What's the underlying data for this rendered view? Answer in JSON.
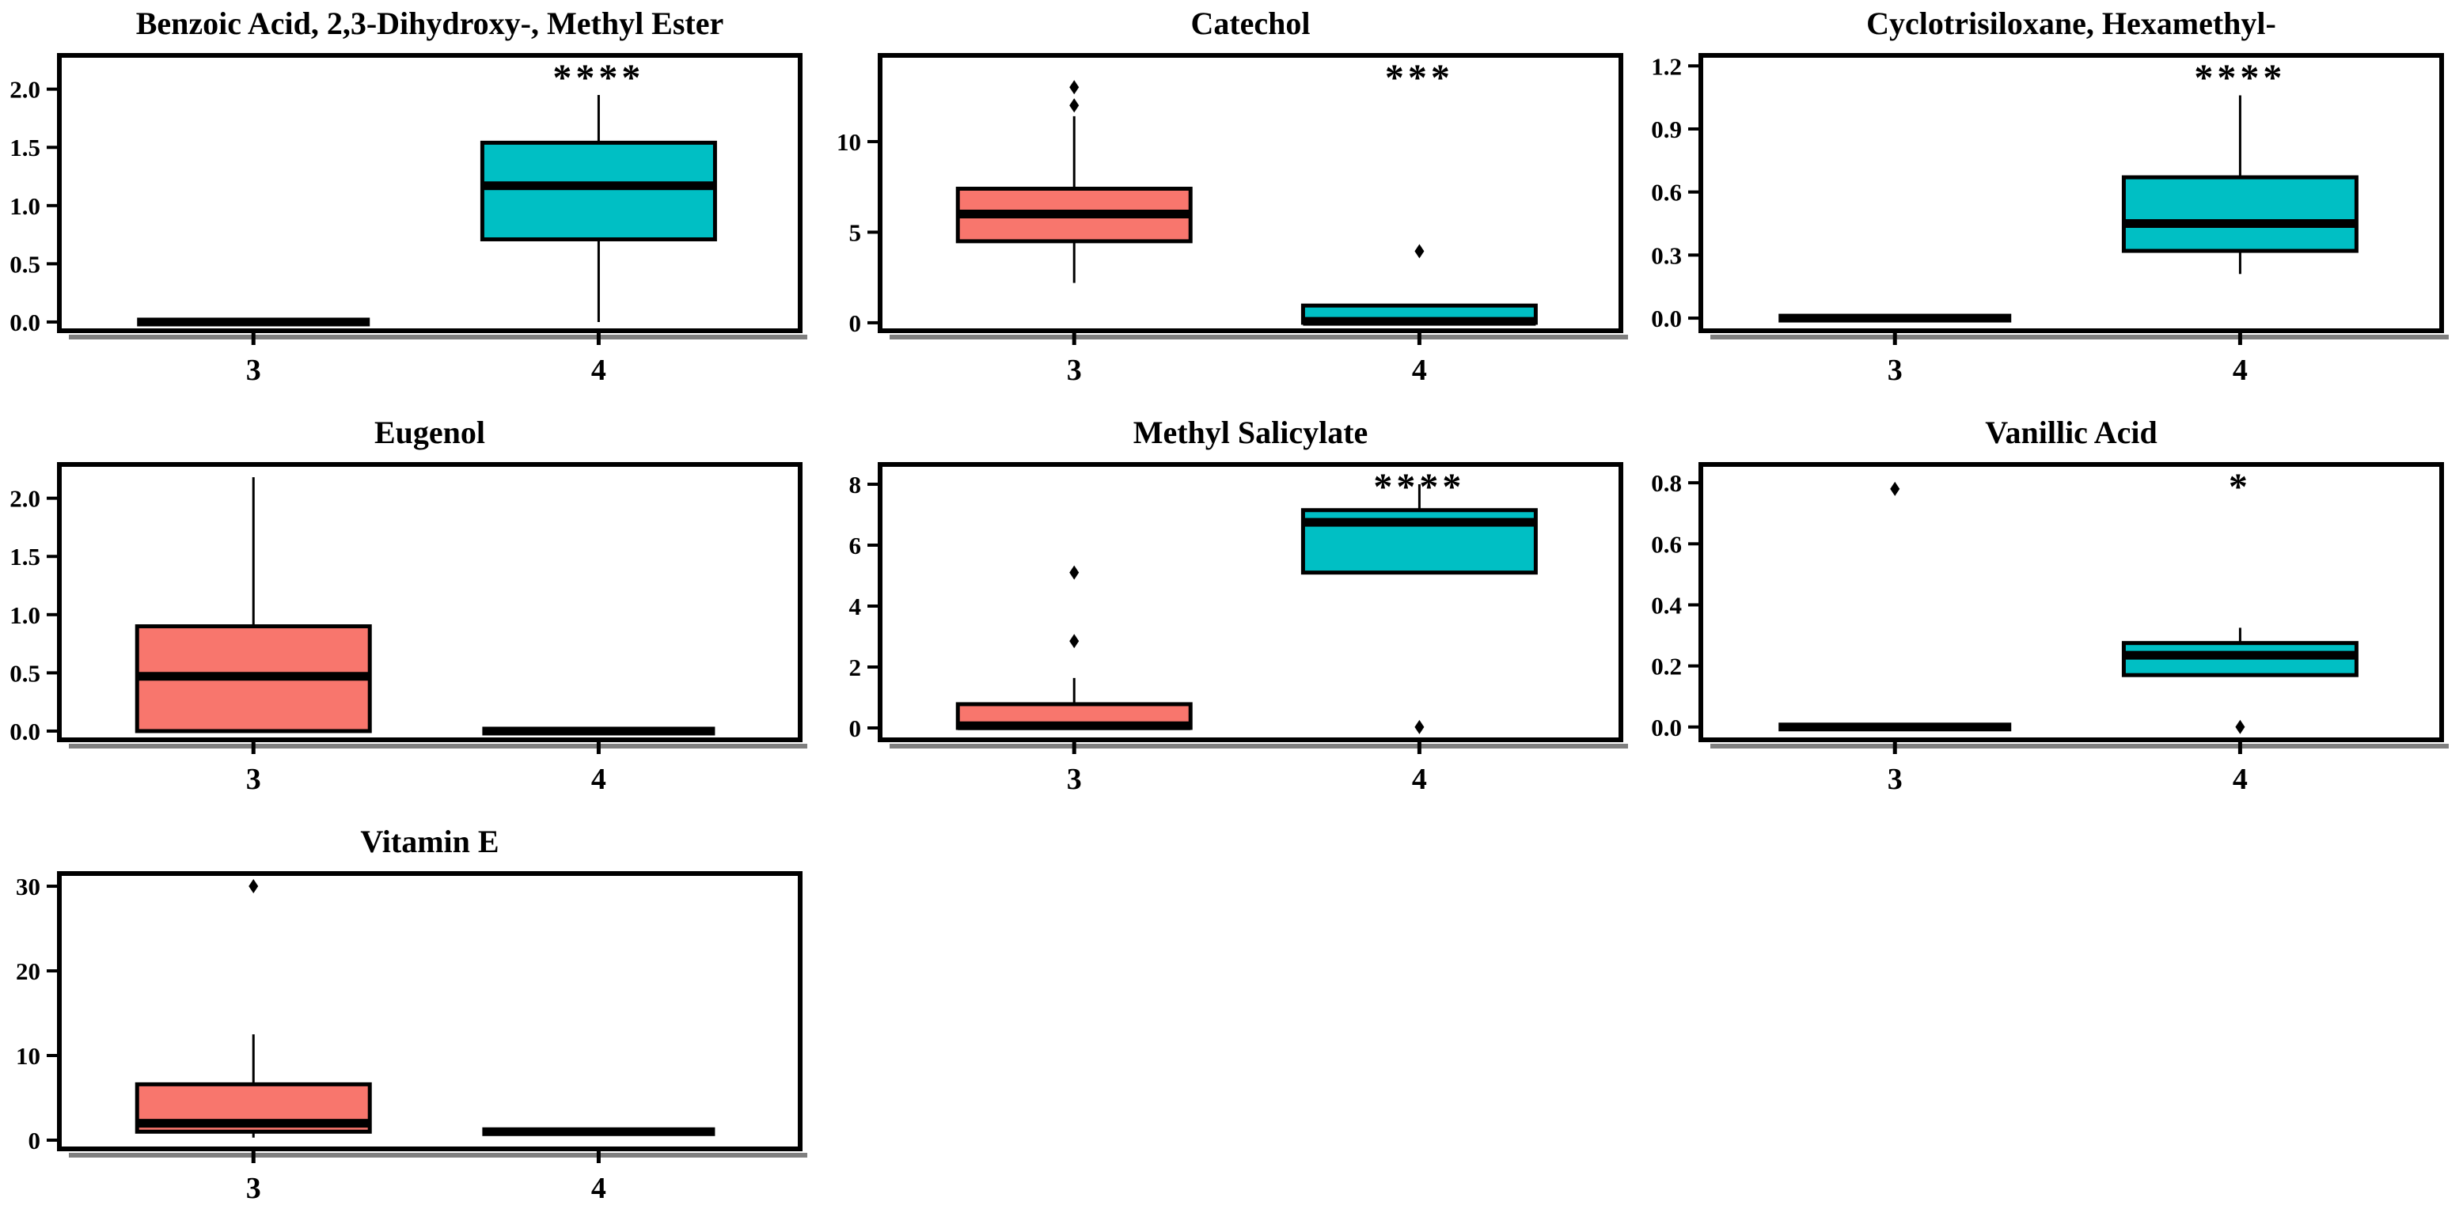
{
  "page": {
    "background": "#ffffff"
  },
  "chart_data": {
    "type": "box",
    "layout": {
      "columns": 3,
      "rows": 3,
      "grid": false,
      "legend": "none"
    },
    "group_colors": {
      "3": "#F8766D",
      "4": "#00BFC4"
    },
    "box_border_color": "#000000",
    "panels": [
      {
        "title": "Benzoic Acid, 2,3-Dihydroxy-, Methyl Ester",
        "significance": "****",
        "x_categories": [
          "3",
          "4"
        ],
        "ylim": [
          -0.075,
          2.29
        ],
        "tick_values": [
          0,
          0.5,
          1.0,
          1.5,
          2.0
        ],
        "tick_labels": [
          "0.0",
          "0.5",
          "1.0",
          "1.5",
          "2.0"
        ],
        "boxes": [
          {
            "category": "3",
            "flat": true,
            "value": 0,
            "color": "#F8766D",
            "outliers": []
          },
          {
            "category": "4",
            "flat": false,
            "color": "#00BFC4",
            "whisker_low": 0.0,
            "q1": 0.71,
            "median": 1.17,
            "q3": 1.54,
            "whisker_high": 1.95,
            "outliers": []
          }
        ]
      },
      {
        "title": "Catechol",
        "significance": "***",
        "x_categories": [
          "3",
          "4"
        ],
        "ylim": [
          -0.44,
          14.76
        ],
        "tick_values": [
          0,
          5,
          10
        ],
        "tick_labels": [
          "0",
          "5",
          "10"
        ],
        "boxes": [
          {
            "category": "3",
            "flat": false,
            "color": "#F8766D",
            "whisker_low": 2.2,
            "q1": 4.5,
            "median": 6.0,
            "q3": 7.4,
            "whisker_high": 11.4,
            "outliers": [
              12.0,
              13.0
            ]
          },
          {
            "category": "4",
            "flat": false,
            "color": "#00BFC4",
            "whisker_low": 0.0,
            "q1": 0.0,
            "median": 0.08,
            "q3": 0.95,
            "whisker_high": 0.95,
            "outliers": [
              3.95
            ]
          }
        ]
      },
      {
        "title": "Cyclotrisiloxane, Hexamethyl-",
        "significance": "****",
        "x_categories": [
          "3",
          "4"
        ],
        "ylim": [
          -0.06,
          1.25
        ],
        "tick_values": [
          0,
          0.3,
          0.6,
          0.9,
          1.2
        ],
        "tick_labels": [
          "0.0",
          "0.3",
          "0.6",
          "0.9",
          "1.2"
        ],
        "boxes": [
          {
            "category": "3",
            "flat": true,
            "value": 0,
            "color": "#F8766D",
            "outliers": []
          },
          {
            "category": "4",
            "flat": false,
            "color": "#00BFC4",
            "whisker_low": 0.21,
            "q1": 0.32,
            "median": 0.45,
            "q3": 0.67,
            "whisker_high": 1.06,
            "outliers": []
          }
        ]
      },
      {
        "title": "Eugenol",
        "significance": "",
        "x_categories": [
          "3",
          "4"
        ],
        "ylim": [
          -0.075,
          2.29
        ],
        "tick_values": [
          0,
          0.5,
          1.0,
          1.5,
          2.0
        ],
        "tick_labels": [
          "0.0",
          "0.5",
          "1.0",
          "1.5",
          "2.0"
        ],
        "boxes": [
          {
            "category": "3",
            "flat": false,
            "color": "#F8766D",
            "whisker_low": 0.0,
            "q1": 0.0,
            "median": 0.47,
            "q3": 0.9,
            "whisker_high": 2.18,
            "outliers": []
          },
          {
            "category": "4",
            "flat": true,
            "value": 0,
            "color": "#00BFC4",
            "outliers": []
          }
        ]
      },
      {
        "title": "Methyl Salicylate",
        "significance": "****",
        "x_categories": [
          "3",
          "4"
        ],
        "ylim": [
          -0.39,
          8.65
        ],
        "tick_values": [
          0,
          2,
          4,
          6,
          8
        ],
        "tick_labels": [
          "0",
          "2",
          "4",
          "6",
          "8"
        ],
        "boxes": [
          {
            "category": "3",
            "flat": false,
            "color": "#F8766D",
            "whisker_low": 0.0,
            "q1": 0.0,
            "median": 0.07,
            "q3": 0.78,
            "whisker_high": 1.64,
            "outliers": [
              2.85,
              5.1
            ]
          },
          {
            "category": "4",
            "flat": false,
            "color": "#00BFC4",
            "whisker_low": 5.1,
            "q1": 5.1,
            "median": 6.75,
            "q3": 7.15,
            "whisker_high": 8.0,
            "outliers": [
              0.03
            ]
          }
        ]
      },
      {
        "title": "Vanillic Acid",
        "significance": "*",
        "x_categories": [
          "3",
          "4"
        ],
        "ylim": [
          -0.042,
          0.86
        ],
        "tick_values": [
          0,
          0.2,
          0.4,
          0.6,
          0.8
        ],
        "tick_labels": [
          "0.0",
          "0.2",
          "0.4",
          "0.6",
          "0.8"
        ],
        "boxes": [
          {
            "category": "3",
            "flat": true,
            "value": 0,
            "color": "#F8766D",
            "outliers": [
              0.78
            ]
          },
          {
            "category": "4",
            "flat": false,
            "color": "#00BFC4",
            "whisker_low": 0.17,
            "q1": 0.17,
            "median": 0.235,
            "q3": 0.275,
            "whisker_high": 0.325,
            "outliers": [
              0.0
            ]
          }
        ]
      },
      {
        "title": "Vitamin E",
        "significance": "",
        "x_categories": [
          "3",
          "4"
        ],
        "ylim": [
          -1.03,
          31.5
        ],
        "tick_values": [
          0,
          10,
          20,
          30
        ],
        "tick_labels": [
          "0",
          "10",
          "20",
          "30"
        ],
        "boxes": [
          {
            "category": "3",
            "flat": false,
            "color": "#F8766D",
            "whisker_low": 0.3,
            "q1": 1.0,
            "median": 2.0,
            "q3": 6.6,
            "whisker_high": 12.5,
            "outliers": [
              30.0
            ]
          },
          {
            "category": "4",
            "flat": true,
            "value": 1.0,
            "color": "#00BFC4",
            "outliers": []
          }
        ]
      }
    ]
  }
}
